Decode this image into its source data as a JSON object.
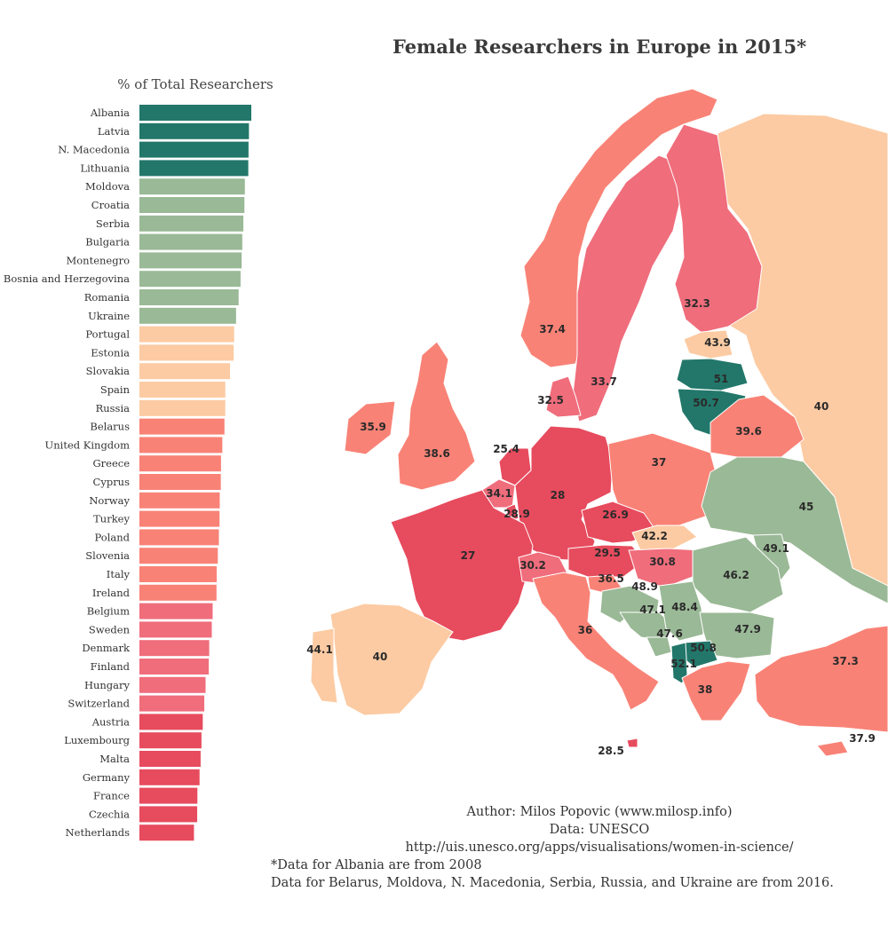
{
  "header": {
    "title": "Female Researchers in Europe in 2015*",
    "bar_subtitle": "% of Total Researchers"
  },
  "colors": {
    "dark_green": "#22776a",
    "light_green": "#9ab996",
    "peach": "#fccba3",
    "salmon": "#f98276",
    "pink": "#f06d7c",
    "red": "#e74b5e",
    "no_data": "#ffffff",
    "border": "#ffffff"
  },
  "chart_data": [
    {
      "type": "bar",
      "orientation": "horizontal",
      "title": "% of Total Researchers",
      "categories": [
        "Albania",
        "Latvia",
        "N. Macedonia",
        "Lithuania",
        "Moldova",
        "Croatia",
        "Serbia",
        "Bulgaria",
        "Montenegro",
        "Bosnia and Herzegovina",
        "Romania",
        "Ukraine",
        "Portugal",
        "Estonia",
        "Slovakia",
        "Spain",
        "Russia",
        "Belarus",
        "United Kingdom",
        "Greece",
        "Cyprus",
        "Norway",
        "Turkey",
        "Poland",
        "Slovenia",
        "Italy",
        "Ireland",
        "Belgium",
        "Sweden",
        "Denmark",
        "Finland",
        "Hungary",
        "Switzerland",
        "Austria",
        "Luxembourg",
        "Malta",
        "Germany",
        "France",
        "Czechia",
        "Netherlands"
      ],
      "values": [
        52.1,
        51,
        50.8,
        50.7,
        49.1,
        48.9,
        48.4,
        47.9,
        47.6,
        47.1,
        46.2,
        45,
        44.1,
        43.9,
        42.2,
        40,
        40,
        39.6,
        38.6,
        38,
        37.9,
        37.4,
        37.3,
        37,
        36.5,
        36,
        35.9,
        34.1,
        33.7,
        32.5,
        32.3,
        30.8,
        30.2,
        29.5,
        28.9,
        28.5,
        28,
        27,
        26.9,
        25.4
      ],
      "color_classes": [
        "dark_green",
        "dark_green",
        "dark_green",
        "dark_green",
        "light_green",
        "light_green",
        "light_green",
        "light_green",
        "light_green",
        "light_green",
        "light_green",
        "light_green",
        "peach",
        "peach",
        "peach",
        "peach",
        "peach",
        "salmon",
        "salmon",
        "salmon",
        "salmon",
        "salmon",
        "salmon",
        "salmon",
        "salmon",
        "salmon",
        "salmon",
        "pink",
        "pink",
        "pink",
        "pink",
        "pink",
        "pink",
        "red",
        "red",
        "red",
        "red",
        "red",
        "red",
        "red"
      ],
      "xlim": [
        0,
        53
      ]
    },
    {
      "type": "map",
      "title": "Female Researchers in Europe in 2015*",
      "regions": [
        {
          "name": "Russia",
          "value": 40,
          "color_class": "peach"
        },
        {
          "name": "Norway",
          "value": 37.4,
          "color_class": "salmon"
        },
        {
          "name": "Sweden",
          "value": 33.7,
          "color_class": "pink"
        },
        {
          "name": "Finland",
          "value": 32.3,
          "color_class": "pink"
        },
        {
          "name": "Estonia",
          "value": 43.9,
          "color_class": "peach"
        },
        {
          "name": "Latvia",
          "value": 51,
          "color_class": "dark_green"
        },
        {
          "name": "Lithuania",
          "value": 50.7,
          "color_class": "dark_green"
        },
        {
          "name": "Belarus",
          "value": 39.6,
          "color_class": "salmon"
        },
        {
          "name": "Ireland",
          "value": 35.9,
          "color_class": "salmon"
        },
        {
          "name": "United Kingdom",
          "value": 38.6,
          "color_class": "salmon"
        },
        {
          "name": "Denmark",
          "value": 32.5,
          "color_class": "pink"
        },
        {
          "name": "Netherlands",
          "value": 25.4,
          "color_class": "red"
        },
        {
          "name": "Belgium",
          "value": 34.1,
          "color_class": "pink"
        },
        {
          "name": "Luxembourg",
          "value": 28.9,
          "color_class": "red"
        },
        {
          "name": "Germany",
          "value": 28,
          "color_class": "red"
        },
        {
          "name": "Poland",
          "value": 37,
          "color_class": "salmon"
        },
        {
          "name": "Czechia",
          "value": 26.9,
          "color_class": "red"
        },
        {
          "name": "Slovakia",
          "value": 42.2,
          "color_class": "peach"
        },
        {
          "name": "Ukraine",
          "value": 45,
          "color_class": "light_green"
        },
        {
          "name": "Moldova",
          "value": 49.1,
          "color_class": "light_green"
        },
        {
          "name": "France",
          "value": 27,
          "color_class": "red"
        },
        {
          "name": "Switzerland",
          "value": 30.2,
          "color_class": "pink"
        },
        {
          "name": "Austria",
          "value": 29.5,
          "color_class": "red"
        },
        {
          "name": "Hungary",
          "value": 30.8,
          "color_class": "pink"
        },
        {
          "name": "Romania",
          "value": 46.2,
          "color_class": "light_green"
        },
        {
          "name": "Slovenia",
          "value": 36.5,
          "color_class": "salmon"
        },
        {
          "name": "Croatia",
          "value": 48.9,
          "color_class": "light_green"
        },
        {
          "name": "Bosnia and Herzegovina",
          "value": 47.1,
          "color_class": "light_green"
        },
        {
          "name": "Serbia",
          "value": 48.4,
          "color_class": "light_green"
        },
        {
          "name": "Montenegro",
          "value": 47.6,
          "color_class": "light_green"
        },
        {
          "name": "Bulgaria",
          "value": 47.9,
          "color_class": "light_green"
        },
        {
          "name": "N. Macedonia",
          "value": 50.8,
          "color_class": "dark_green"
        },
        {
          "name": "Albania",
          "value": 52.1,
          "color_class": "dark_green"
        },
        {
          "name": "Greece",
          "value": 38,
          "color_class": "salmon"
        },
        {
          "name": "Turkey",
          "value": 37.3,
          "color_class": "salmon"
        },
        {
          "name": "Cyprus",
          "value": 37.9,
          "color_class": "salmon"
        },
        {
          "name": "Italy",
          "value": 36,
          "color_class": "salmon"
        },
        {
          "name": "Malta",
          "value": 28.5,
          "color_class": "red"
        },
        {
          "name": "Spain",
          "value": 40,
          "color_class": "peach"
        },
        {
          "name": "Portugal",
          "value": 44.1,
          "color_class": "peach"
        }
      ]
    }
  ],
  "footer": {
    "author": "Author: Milos Popovic (www.milosp.info)",
    "data_source": "Data:  UNESCO",
    "url": "http://uis.unesco.org/apps/visualisations/women-in-science/",
    "note_1": "*Data for Albania are from 2008",
    "note_2": "Data for Belarus, Moldova, N. Macedonia, Serbia, Russia, and Ukraine are from 2016."
  }
}
